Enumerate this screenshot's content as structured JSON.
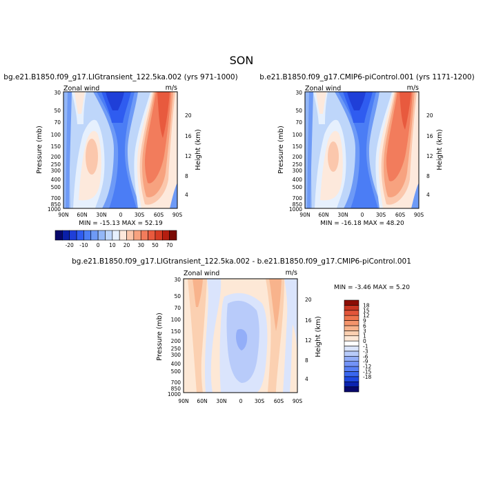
{
  "figure": {
    "title": "SON"
  },
  "scale_full": {
    "colors": [
      "#08086b",
      "#0a1fa8",
      "#1f3fd8",
      "#2f5cf0",
      "#4b7df5",
      "#6e9af6",
      "#93b7f7",
      "#bed6fa",
      "#e6f0fd",
      "#fde9dc",
      "#fbc7ac",
      "#f7a27f",
      "#f27c5c",
      "#e85a3e",
      "#d63c24",
      "#b51e10",
      "#7a0a05"
    ],
    "labels": [
      "-20",
      "-10",
      "0",
      "10",
      "20",
      "30",
      "50",
      "70"
    ]
  },
  "scale_diff": {
    "colors": [
      "#08086b",
      "#0b23b0",
      "#1f48e0",
      "#3a67ef",
      "#587ff4",
      "#7393f6",
      "#93aef8",
      "#b8cbfa",
      "#dae4fc",
      "#ffffff",
      "#fde8d6",
      "#fbd0b1",
      "#f8b38c",
      "#f4946b",
      "#ee754e",
      "#e2553a",
      "#c83522",
      "#8b0d05"
    ],
    "labels": [
      "18",
      "15",
      "12",
      "9",
      "6",
      "3",
      "1",
      "0",
      "-1",
      "-3",
      "-6",
      "-9",
      "-12",
      "-15",
      "-18"
    ]
  },
  "chart_data": [
    {
      "type": "heatmap",
      "title": "bg.e21.B1850.f09_g17.LIGtransient_122.5ka.002 (yrs 971-1000)",
      "left_label": "Zonal wind",
      "right_label": "m/s",
      "ylabel": "Pressure (mb)",
      "y2label": "Height (km)",
      "x_ticks": [
        "90N",
        "60N",
        "30N",
        "0",
        "30S",
        "60S",
        "90S"
      ],
      "xlim": [
        90,
        -90
      ],
      "y_ticks": [
        "30",
        "50",
        "70",
        "100",
        "150",
        "200",
        "250",
        "300",
        "400",
        "500",
        "700",
        "850",
        "1000"
      ],
      "ylim": [
        1000,
        30
      ],
      "y2_ticks": [
        "20",
        "16",
        "12",
        "8",
        "4"
      ],
      "min": "-15.13",
      "max": "52.19",
      "stats_text": "MIN = -15.13   MAX =  52.19"
    },
    {
      "type": "heatmap",
      "title": "b.e21.B1850.f09_g17.CMIP6-piControl.001 (yrs 1171-1200)",
      "left_label": "Zonal wind",
      "right_label": "m/s",
      "ylabel": "Pressure (mb)",
      "y2label": "Height (km)",
      "x_ticks": [
        "90N",
        "60N",
        "30N",
        "0",
        "30S",
        "60S",
        "90S"
      ],
      "xlim": [
        90,
        -90
      ],
      "y_ticks": [
        "30",
        "50",
        "70",
        "100",
        "150",
        "200",
        "250",
        "300",
        "400",
        "500",
        "700",
        "850",
        "1000"
      ],
      "ylim": [
        1000,
        30
      ],
      "y2_ticks": [
        "20",
        "16",
        "12",
        "8",
        "4"
      ],
      "min": "-16.18",
      "max": "48.20",
      "stats_text": "MIN = -16.18   MAX =  48.20"
    },
    {
      "type": "heatmap",
      "title": "bg.e21.B1850.f09_g17.LIGtransient_122.5ka.002 - b.e21.B1850.f09_g17.CMIP6-piControl.001",
      "left_label": "Zonal wind",
      "right_label": "m/s",
      "ylabel": "Pressure (mb)",
      "y2label": "Height (km)",
      "x_ticks": [
        "90N",
        "60N",
        "30N",
        "0",
        "30S",
        "60S",
        "90S"
      ],
      "xlim": [
        90,
        -90
      ],
      "y_ticks": [
        "30",
        "50",
        "70",
        "100",
        "150",
        "200",
        "250",
        "300",
        "400",
        "500",
        "700",
        "850",
        "1000"
      ],
      "ylim": [
        1000,
        30
      ],
      "y2_ticks": [
        "20",
        "16",
        "12",
        "8",
        "4"
      ],
      "min": "-3.46",
      "max": "5.20",
      "stats_text": "MIN =  -3.46   MAX =   5.20"
    }
  ]
}
